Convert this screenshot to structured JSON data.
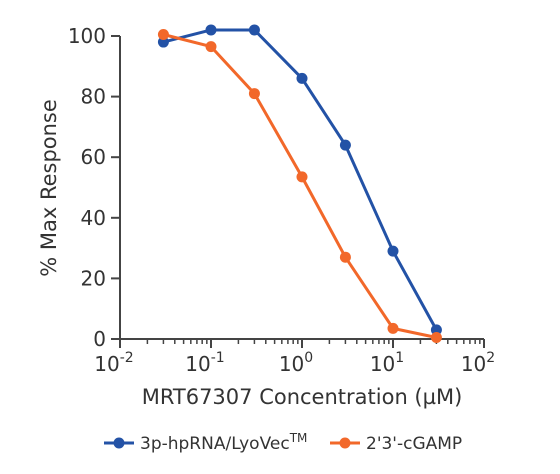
{
  "chart_data": {
    "type": "line",
    "title": "",
    "xlabel": "MRT67307 Concentration (µM)",
    "ylabel": "% Max Response",
    "x_scale": "log",
    "xlim": [
      0.01,
      100
    ],
    "ylim": [
      0,
      100
    ],
    "x_ticks": [
      {
        "value": 0.01,
        "base": "10",
        "exp": "-2"
      },
      {
        "value": 0.1,
        "base": "10",
        "exp": "-1"
      },
      {
        "value": 1,
        "base": "10",
        "exp": "0"
      },
      {
        "value": 10,
        "base": "10",
        "exp": "1"
      },
      {
        "value": 100,
        "base": "10",
        "exp": "2"
      }
    ],
    "y_ticks": [
      "0",
      "20",
      "40",
      "60",
      "80",
      "100"
    ],
    "grid": false,
    "legend_position": "bottom",
    "series": [
      {
        "name": "3p-hpRNA/LyoVec",
        "name_sup": "TM",
        "color": "#2352a6",
        "x": [
          0.03,
          0.1,
          0.3,
          1,
          3,
          10,
          30
        ],
        "y": [
          98,
          102,
          102,
          86,
          64,
          29,
          3
        ]
      },
      {
        "name": "2'3'-cGAMP",
        "name_sup": "",
        "color": "#f2682a",
        "x": [
          0.03,
          0.1,
          0.3,
          1,
          3,
          10,
          30
        ],
        "y": [
          100.5,
          96.5,
          81,
          53.5,
          27,
          3.5,
          0.5
        ]
      }
    ]
  }
}
